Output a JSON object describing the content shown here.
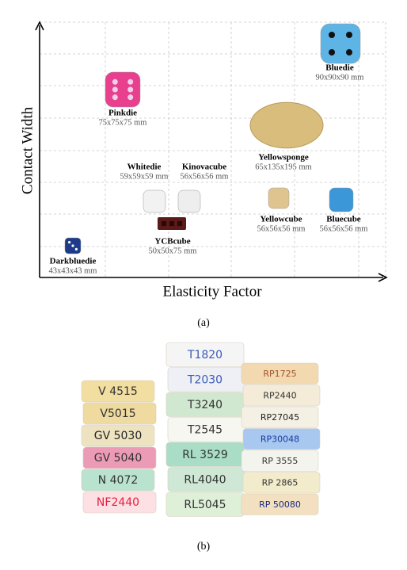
{
  "panel_a": {
    "y_axis_label": "Contact Width",
    "x_axis_label": "Elasticity Factor",
    "objects": [
      {
        "name": "Bluedie",
        "size": "90x90x90 mm"
      },
      {
        "name": "Pinkdie",
        "size": "75x75x75 mm"
      },
      {
        "name": "Yellowsponge",
        "size": "65x135x195 mm"
      },
      {
        "name": "Whitedie",
        "size": "59x59x59 mm"
      },
      {
        "name": "Kinovacube",
        "size": "56x56x56 mm"
      },
      {
        "name": "YCBcube",
        "size": "50x50x75 mm"
      },
      {
        "name": "Yellowcube",
        "size": "56x56x56 mm"
      },
      {
        "name": "Bluecube",
        "size": "56x56x56 mm"
      },
      {
        "name": "Darkbluedie",
        "size": "43x43x43 mm"
      }
    ],
    "caption": "(a)"
  },
  "panel_b": {
    "stacks": [
      [
        "V 4515",
        "V5015",
        "GV 5030",
        "GV 5040",
        "N 4072",
        "NF2440"
      ],
      [
        "T1820",
        "T2030",
        "T3240",
        "T2545",
        "RL 3529",
        "RL4040",
        "RL5045"
      ],
      [
        "RP1725",
        "RP2440",
        "RP27045",
        "RP30048",
        "RP 3555",
        "RP 2865",
        "RP 50080"
      ]
    ],
    "caption": "(b)"
  }
}
